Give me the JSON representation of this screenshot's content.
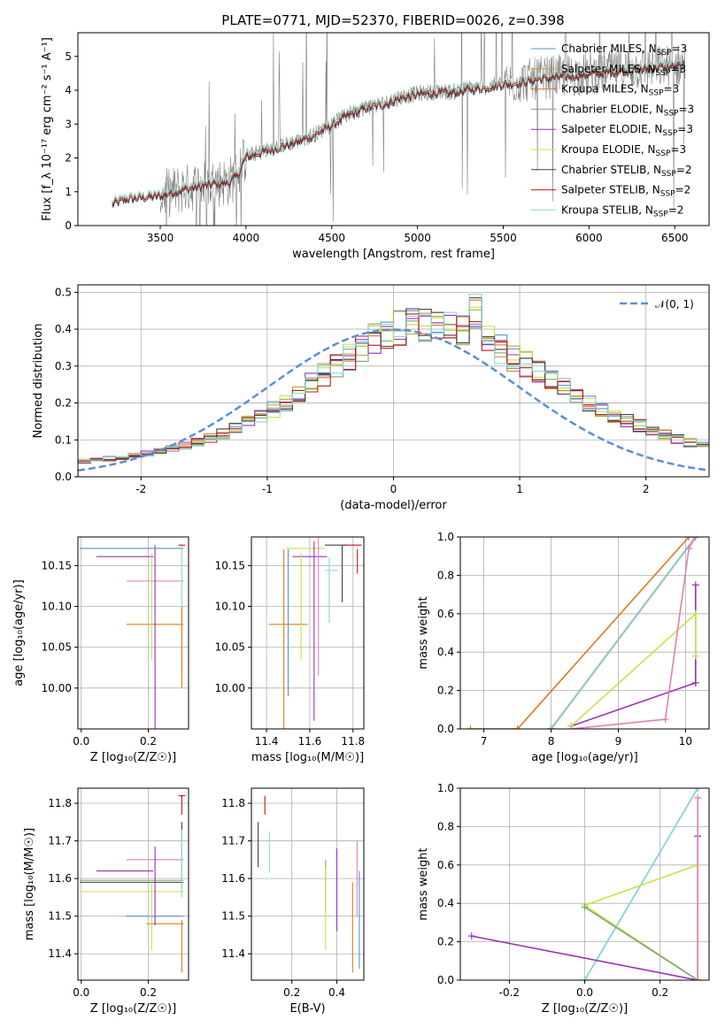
{
  "title": "PLATE=0771, MJD=52370, FIBERID=0026, z=0.398",
  "series": [
    {
      "name": "Chabrier MILES",
      "nssp": "3",
      "color": "#5b8ed8"
    },
    {
      "name": "Salpeter MILES",
      "nssp": "3",
      "color": "#b8a838"
    },
    {
      "name": "Kroupa MILES",
      "nssp": "3",
      "color": "#e07b1a"
    },
    {
      "name": "Chabrier ELODIE",
      "nssp": "3",
      "color": "#7aa878"
    },
    {
      "name": "Salpeter ELODIE",
      "nssp": "3",
      "color": "#9b30b8"
    },
    {
      "name": "Kroupa ELODIE",
      "nssp": "3",
      "color": "#c8e048"
    },
    {
      "name": "Chabrier STELIB",
      "nssp": "2",
      "color": "#404040"
    },
    {
      "name": "Salpeter STELIB",
      "nssp": "2",
      "color": "#c01818"
    },
    {
      "name": "Kroupa STELIB",
      "nssp": "2",
      "color": "#88d8d8"
    }
  ],
  "chart_data": [
    {
      "id": "spectrum",
      "type": "line",
      "xlabel": "wavelength [Angstrom, rest frame]",
      "ylabel": "Flux [f_λ 10⁻¹⁷ erg cm⁻² s⁻¹ A⁻¹]",
      "xlim": [
        3020,
        6700
      ],
      "ylim": [
        0,
        5.7
      ],
      "xticks": [
        3500,
        4000,
        4500,
        5000,
        5500,
        6000,
        6500
      ],
      "yticks": [
        0,
        1,
        2,
        3,
        4,
        5
      ],
      "legend": "top-right",
      "data_color": "#808080",
      "continuum": {
        "x": [
          3220,
          3300,
          3400,
          3500,
          3600,
          3700,
          3800,
          3900,
          3950,
          4000,
          4100,
          4200,
          4300,
          4400,
          4500,
          4600,
          4700,
          4800,
          4900,
          5000,
          5100,
          5200,
          5300,
          5400,
          5500,
          5600,
          5700,
          5800,
          5900,
          6000,
          6100,
          6200,
          6300,
          6400,
          6550
        ],
        "y": [
          0.65,
          0.8,
          0.85,
          0.9,
          1.05,
          1.15,
          1.25,
          1.3,
          1.5,
          2.05,
          2.2,
          2.35,
          2.5,
          2.7,
          3.0,
          3.3,
          3.5,
          3.6,
          3.8,
          3.9,
          3.95,
          3.95,
          4.05,
          4.1,
          4.2,
          4.25,
          4.35,
          4.4,
          4.45,
          4.5,
          4.55,
          4.6,
          4.65,
          4.7,
          4.75
        ]
      },
      "data_range": [
        3500,
        6560
      ],
      "model_range": [
        3220,
        6560
      ]
    },
    {
      "id": "residuals",
      "type": "area",
      "xlabel": "(data-model)/error",
      "ylabel": "Normed distribution",
      "xlim": [
        -2.5,
        2.5
      ],
      "ylim": [
        0,
        0.52
      ],
      "xticks": [
        -2,
        -1,
        0,
        1,
        2
      ],
      "yticks": [
        0.0,
        0.1,
        0.2,
        0.3,
        0.4,
        0.5
      ],
      "legend": "top-right",
      "legend_label": "𝒩(0, 1)",
      "gauss_color": "#5b8ed8"
    },
    {
      "id": "age-vs-Z",
      "type": "scatter",
      "xlabel": "Z [log₁₀(Z/Z☉)]",
      "ylabel": "age  [log₁₀(age/yr)]",
      "xlim": [
        -0.01,
        0.32
      ],
      "ylim": [
        9.95,
        10.185
      ],
      "xticks": [
        0.0,
        0.2
      ],
      "yticks": [
        10.0,
        10.05,
        10.1,
        10.15
      ]
    },
    {
      "id": "age-vs-mass",
      "type": "scatter",
      "xlabel": "mass [log₁₀(M/M☉)]",
      "ylabel": "",
      "xlim": [
        11.33,
        11.85
      ],
      "ylim": [
        9.95,
        10.185
      ],
      "xticks": [
        11.4,
        11.6,
        11.8
      ],
      "yticks": [
        10.0,
        10.05,
        10.1,
        10.15
      ]
    },
    {
      "id": "weight-vs-age",
      "type": "line",
      "xlabel": "age  [log₁₀(age/yr)]",
      "ylabel": "mass weight",
      "xlim": [
        6.65,
        10.35
      ],
      "ylim": [
        0,
        1.0
      ],
      "xticks": [
        7,
        8,
        9,
        10
      ],
      "yticks": [
        0.0,
        0.2,
        0.4,
        0.6,
        0.8,
        1.0
      ],
      "series": [
        {
          "name": "Chabrier MILES",
          "x": [
            8.0,
            10.15
          ],
          "y": [
            0.0,
            1.0
          ]
        },
        {
          "name": "Salpeter MILES",
          "x": [
            8.0,
            10.15
          ],
          "y": [
            0.0,
            1.0
          ]
        },
        {
          "name": "Kroupa MILES",
          "x": [
            6.8,
            7.5,
            10.05
          ],
          "y": [
            0.0,
            0.0,
            1.0
          ]
        },
        {
          "name": "Chabrier ELODIE",
          "x": [
            8.0,
            10.15
          ],
          "y": [
            0.0,
            1.0
          ]
        },
        {
          "name": "Salpeter ELODIE",
          "x": [
            8.3,
            10.15,
            10.15,
            10.15
          ],
          "y": [
            0.015,
            0.24,
            0.75,
            0.24
          ]
        },
        {
          "name": "Kroupa ELODIE",
          "x": [
            8.3,
            10.15,
            10.15
          ],
          "y": [
            0.015,
            0.6,
            0.38
          ]
        },
        {
          "name": "Chabrier STELIB",
          "x": [
            8.0,
            10.15
          ],
          "y": [
            0.0,
            1.0
          ]
        },
        {
          "name": "Salpeter STELIB",
          "x": [
            8.0,
            10.15
          ],
          "y": [
            0.0,
            1.0
          ]
        },
        {
          "name": "Kroupa STELIB",
          "x": [
            8.0,
            10.15
          ],
          "y": [
            0.0,
            1.0
          ]
        },
        {
          "name": "pink",
          "x": [
            8.3,
            9.7,
            10.05,
            10.15
          ],
          "y": [
            0.0,
            0.05,
            0.94,
            1.0
          ]
        }
      ]
    },
    {
      "id": "mass-vs-Z",
      "type": "scatter",
      "xlabel": "Z [log₁₀(Z/Z☉)]",
      "ylabel": "mass [log₁₀(M/M☉)]",
      "xlim": [
        -0.01,
        0.32
      ],
      "ylim": [
        11.33,
        11.84
      ],
      "xticks": [
        0.0,
        0.2
      ],
      "yticks": [
        11.4,
        11.5,
        11.6,
        11.7,
        11.8
      ]
    },
    {
      "id": "mass-vs-ebv",
      "type": "scatter",
      "xlabel": "E(B-V)",
      "ylabel": "",
      "xlim": [
        0.02,
        0.52
      ],
      "ylim": [
        11.33,
        11.84
      ],
      "xticks": [
        0.2,
        0.4
      ],
      "yticks": [
        11.4,
        11.5,
        11.6,
        11.7,
        11.8
      ]
    },
    {
      "id": "weight-vs-Z",
      "type": "line",
      "xlabel": "Z [log₁₀(Z/Z☉)]",
      "ylabel": "mass weight",
      "xlim": [
        -0.33,
        0.33
      ],
      "ylim": [
        0,
        1.0
      ],
      "xticks": [
        -0.2,
        0.0,
        0.2
      ],
      "yticks": [
        0.0,
        0.2,
        0.4,
        0.6,
        0.8,
        1.0
      ],
      "series": [
        {
          "name": "Chabrier MILES",
          "x": [
            0.0,
            0.3
          ],
          "y": [
            0.0,
            1.0
          ]
        },
        {
          "name": "Kroupa STELIB",
          "x": [
            0.0,
            0.3
          ],
          "y": [
            0.0,
            1.0
          ]
        },
        {
          "name": "Salpeter ELODIE",
          "x": [
            -0.3,
            0.3,
            0.3,
            0.3
          ],
          "y": [
            0.23,
            0.0,
            0.75,
            0.0
          ]
        },
        {
          "name": "Kroupa ELODIE",
          "x": [
            0.0,
            0.3,
            0.3,
            0.0
          ],
          "y": [
            0.39,
            0.0,
            0.6,
            0.39
          ]
        },
        {
          "name": "Chabrier ELODIE",
          "x": [
            0.0,
            0.3
          ],
          "y": [
            0.38,
            0.0
          ]
        },
        {
          "name": "pink",
          "x": [
            0.3,
            0.3
          ],
          "y": [
            0.0,
            0.95
          ]
        }
      ]
    }
  ]
}
